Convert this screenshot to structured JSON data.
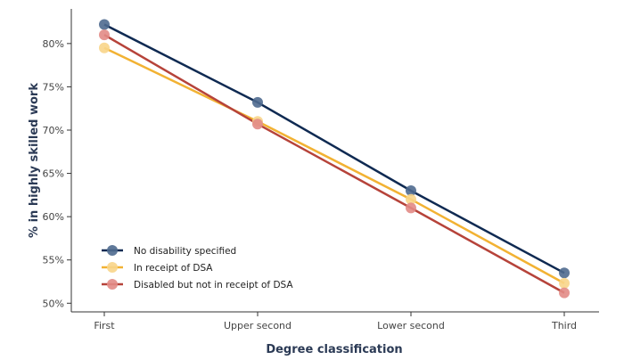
{
  "chart_data": {
    "type": "line",
    "title": "",
    "xlabel": "Degree classification",
    "ylabel": "% in highly skilled work",
    "categories": [
      "First",
      "Upper second",
      "Lower second",
      "Third"
    ],
    "y_ticks": [
      "50%",
      "55%",
      "60%",
      "65%",
      "70%",
      "75%",
      "80%"
    ],
    "y_tick_values": [
      50,
      55,
      60,
      65,
      70,
      75,
      80
    ],
    "ylim": [
      49,
      84
    ],
    "grid": false,
    "legend_position": "bottom-left",
    "series": [
      {
        "name": "No disability specified",
        "color": "#0f2a52",
        "marker_color": "#4f6a8f",
        "values": [
          82.2,
          73.2,
          63.0,
          53.5
        ]
      },
      {
        "name": "In receipt of DSA",
        "color": "#f2b233",
        "marker_color": "#f8d58a",
        "values": [
          79.5,
          71.0,
          62.0,
          52.3
        ]
      },
      {
        "name": "Disabled but not in receipt of DSA",
        "color": "#b6433a",
        "marker_color": "#e28b86",
        "values": [
          81.0,
          70.7,
          61.0,
          51.2
        ]
      }
    ]
  }
}
